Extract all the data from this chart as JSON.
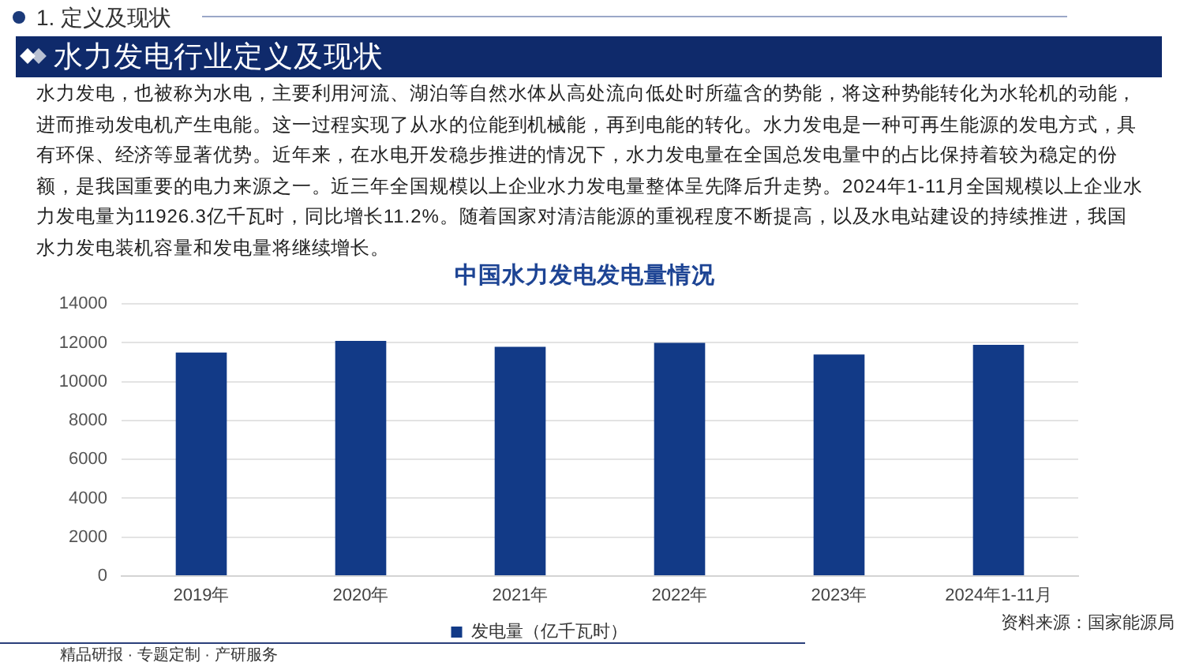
{
  "chart_data": {
    "type": "bar",
    "title": "中国水力发电发电量情况",
    "categories": [
      "2019年",
      "2020年",
      "2021年",
      "2022年",
      "2023年",
      "2024年1-11月"
    ],
    "series": [
      {
        "name": "发电量（亿千瓦时）",
        "color": "#123a87",
        "values": [
          11500,
          12100,
          11800,
          12000,
          11400,
          11900
        ]
      }
    ],
    "ylim": [
      0,
      14000
    ],
    "yticks": [
      0,
      2000,
      4000,
      6000,
      8000,
      10000,
      12000,
      14000
    ],
    "grid": "y",
    "legend": "bottom",
    "annotations": [
      "1. 定义及现状",
      "水力发电行业定义及现状",
      "水力发电，也被称为水电，主要利用河流、湖泊等自然水体从高处流向低处时所蕴含的势能，将这种势能转化为水轮机的动能，进而推动发电机产生电能。这一过程实现了从水的位能到机械能，再到电能的转化。水力发电是一种可再生能源的发电方式，具有环保、经济等显著优势。近年来，在水电开发稳步推进的情况下，水力发电量在全国总发电量中的占比保持着较为稳定的份额，是我国重要的电力来源之一。近三年全国规模以上企业水力发电量整体呈先降后升走势。2024年1-11月全国规模以上企业水力发电量为11926.3亿千瓦时，同比增长11.2%。随着国家对清洁能源的重视程度不断提高，以及水电站建设的持续推进，我国水力发电装机容量和发电量将继续增长。",
      "资料来源：国家能源局",
      "精品研报 · 专题定制 · 产研服务"
    ]
  }
}
